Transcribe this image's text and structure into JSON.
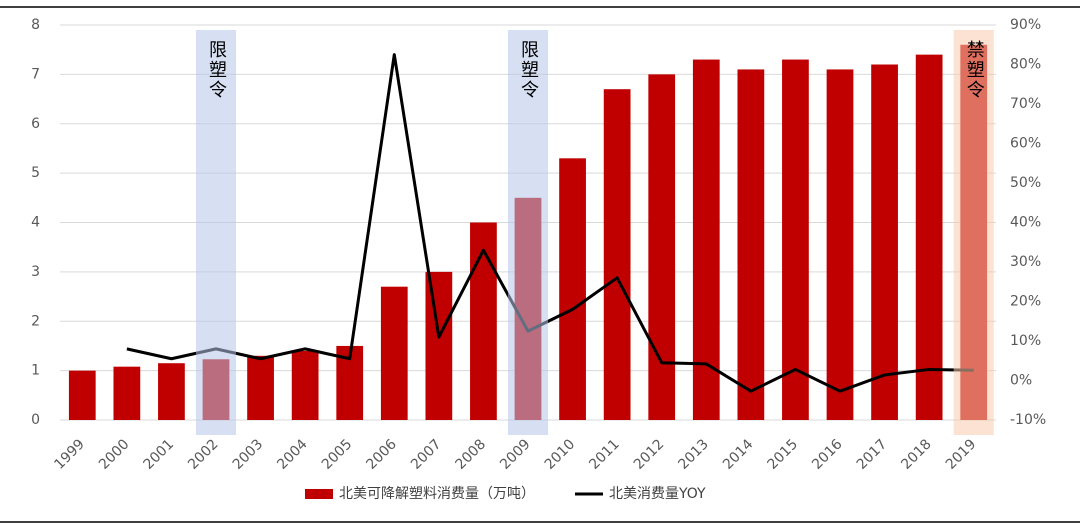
{
  "chart_data": {
    "type": "bar_line",
    "categories": [
      "1999",
      "2000",
      "2001",
      "2002",
      "2003",
      "2004",
      "2005",
      "2006",
      "2007",
      "2008",
      "2009",
      "2010",
      "2011",
      "2012",
      "2013",
      "2014",
      "2015",
      "2016",
      "2017",
      "2018",
      "2019"
    ],
    "series": [
      {
        "name": "北美可降解塑料消费量（万吨）",
        "type": "bar",
        "color": "#c00000",
        "values": [
          1.0,
          1.08,
          1.15,
          1.23,
          1.3,
          1.4,
          1.5,
          2.7,
          3.0,
          4.0,
          4.5,
          5.3,
          6.7,
          7.0,
          7.3,
          7.1,
          7.3,
          7.1,
          7.2,
          7.4,
          7.6
        ]
      },
      {
        "name": "北美消费量YOY",
        "type": "line",
        "color": "#000000",
        "axis": "y2",
        "values": [
          null,
          8,
          5.5,
          8,
          5.5,
          8,
          5.5,
          82.5,
          11,
          33,
          12.5,
          18,
          26,
          4.5,
          4.2,
          -2.7,
          2.8,
          -2.7,
          1.4,
          2.8,
          2.6
        ]
      }
    ],
    "ylim": [
      0,
      8
    ],
    "yticks": [
      0,
      1,
      2,
      3,
      4,
      5,
      6,
      7,
      8
    ],
    "y2lim": [
      -10,
      90
    ],
    "y2ticks": [
      {
        "value": -10,
        "label": "-10%"
      },
      {
        "value": 0,
        "label": "0%"
      },
      {
        "value": 10,
        "label": "10%"
      },
      {
        "value": 20,
        "label": "20%"
      },
      {
        "value": 30,
        "label": "30%"
      },
      {
        "value": 40,
        "label": "40%"
      },
      {
        "value": 50,
        "label": "50%"
      },
      {
        "value": 60,
        "label": "60%"
      },
      {
        "value": 70,
        "label": "70%"
      },
      {
        "value": 80,
        "label": "80%"
      },
      {
        "value": 90,
        "label": "90%"
      }
    ],
    "grid": true,
    "annotations": [
      {
        "text": "限塑令",
        "category": "2002",
        "color": "#b4c7e7"
      },
      {
        "text": "限塑令",
        "category": "2009",
        "color": "#b4c7e7"
      },
      {
        "text": "禁塑令",
        "category": "2019",
        "color": "#f8cbad"
      }
    ]
  }
}
